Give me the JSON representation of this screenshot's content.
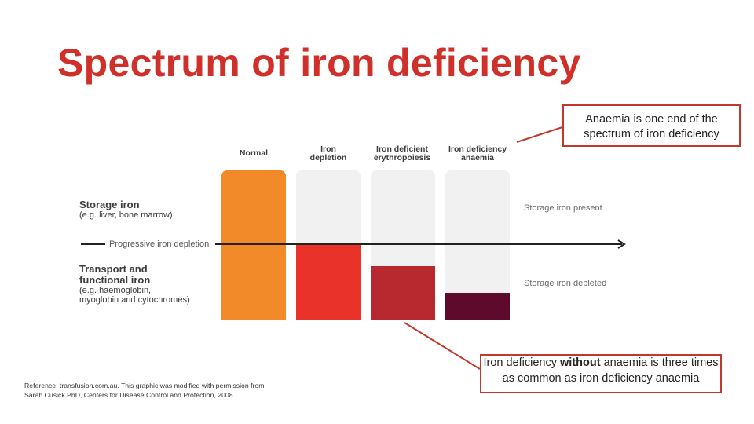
{
  "title": "Spectrum of iron deficiency",
  "callouts": {
    "top": "Anaemia is one end of the spectrum of iron deficiency",
    "bottom_prefix": "Iron deficiency ",
    "bottom_emphasis": "without",
    "bottom_suffix": " anaemia is three times as common as iron deficiency anaemia"
  },
  "diagram": {
    "row_labels": {
      "storage_title": "Storage iron",
      "storage_sub": "(e.g. liver, bone marrow)",
      "transport_title_1": "Transport and",
      "transport_title_2": "functional iron",
      "transport_sub_1": "(e.g. haemoglobin,",
      "transport_sub_2": "myoglobin and cytochromes)"
    },
    "arrow_label": "Progressive iron depletion",
    "side_notes": {
      "present": "Storage iron present",
      "depleted": "Storage iron depleted"
    },
    "columns": [
      {
        "label_1": "Normal",
        "label_2": "",
        "color": "#f28a2a",
        "fill_fraction": 1.0
      },
      {
        "label_1": "Iron",
        "label_2": "depletion",
        "color": "#e8322a",
        "fill_fraction": 0.5
      },
      {
        "label_1": "Iron deficient",
        "label_2": "erythropoiesis",
        "color": "#b8282f",
        "fill_fraction": 0.36
      },
      {
        "label_1": "Iron deficiency",
        "label_2": "anaemia",
        "color": "#5e0a2c",
        "fill_fraction": 0.18
      }
    ],
    "empty_color": "#f1f1f1",
    "line_color": "#c0392b"
  },
  "reference": "Reference: transfusion.com.au. This graphic was modified with permission from Sarah Cusick PhD, Centers for Disease Control and Protection, 2008."
}
